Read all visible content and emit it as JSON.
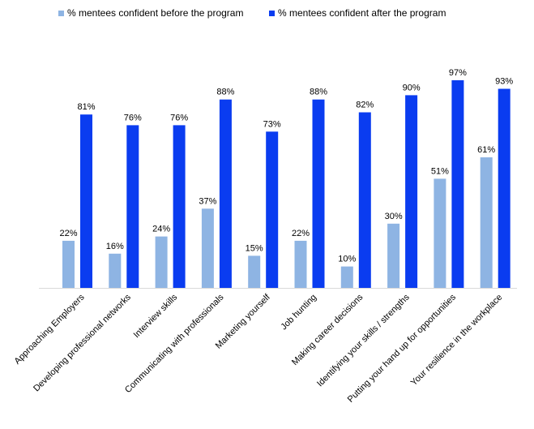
{
  "chart_data": {
    "type": "bar",
    "title": "",
    "xlabel": "",
    "ylabel": "",
    "ylim": [
      0,
      100
    ],
    "grid": false,
    "legend_position": "top",
    "categories": [
      "Approaching Employers",
      "Developing professional networks",
      "Interview skills",
      "Communicating with professionals",
      "Marketing yourself",
      "Job hunting",
      "Making career decisions",
      "Identifying your skills / strengths",
      "Putting your hand up for opportunities",
      "Your resilience in the workplace"
    ],
    "series": [
      {
        "name": "% mentees confident before the program",
        "color": "#8eb4e3",
        "values": [
          22,
          16,
          24,
          37,
          15,
          22,
          10,
          30,
          51,
          61
        ],
        "labels": [
          "22%",
          "16%",
          "24%",
          "37%",
          "15%",
          "22%",
          "10%",
          "30%",
          "51%",
          "61%"
        ]
      },
      {
        "name": "% mentees confident after the program",
        "color": "#0a3cf0",
        "values": [
          81,
          76,
          76,
          88,
          73,
          88,
          82,
          90,
          97,
          93
        ],
        "labels": [
          "81%",
          "76%",
          "76%",
          "88%",
          "73%",
          "88%",
          "82%",
          "90%",
          "97%",
          "93%"
        ]
      }
    ]
  }
}
